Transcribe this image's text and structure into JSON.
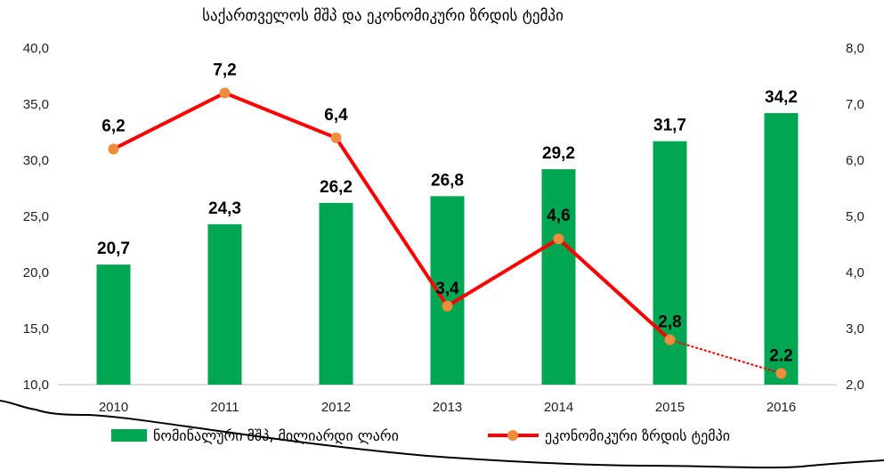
{
  "chart_data": {
    "type": "bar+line",
    "title": "საქართველოს მშპ და ეკონომიკური ზრდის ტემპი",
    "categories": [
      "2010",
      "2011",
      "2012",
      "2013",
      "2014",
      "2015",
      "2016"
    ],
    "series": [
      {
        "name": "ნომინალური მშპ, მილიარდი ლარი",
        "type": "bar",
        "axis": "left",
        "color": "#00a651",
        "values": [
          20.7,
          24.3,
          26.2,
          26.8,
          29.2,
          31.7,
          34.2
        ],
        "labels": [
          "20,7",
          "24,3",
          "26,2",
          "26,8",
          "29,2",
          "31,7",
          "34,2"
        ]
      },
      {
        "name": "ეკონომიკური ზრდის ტემპი",
        "type": "line",
        "axis": "right",
        "color": "#ff0000",
        "marker_color": "#f08c3c",
        "values": [
          6.2,
          7.2,
          6.4,
          3.4,
          4.6,
          2.8,
          2.2
        ],
        "labels": [
          "6,2",
          "7,2",
          "6,4",
          "3,4",
          "4,6",
          "2,8",
          "2.2"
        ]
      }
    ],
    "y_left": {
      "ylim": [
        10,
        40
      ],
      "ticks": [
        "10,0",
        "15,0",
        "20,0",
        "25,0",
        "30,0",
        "35,0",
        "40,0"
      ]
    },
    "y_right": {
      "ylim": [
        2,
        8
      ],
      "ticks": [
        "2,0",
        "3,0",
        "4,0",
        "5,0",
        "6,0",
        "7,0",
        "8,0"
      ]
    },
    "grid": false,
    "legend_position": "bottom"
  }
}
